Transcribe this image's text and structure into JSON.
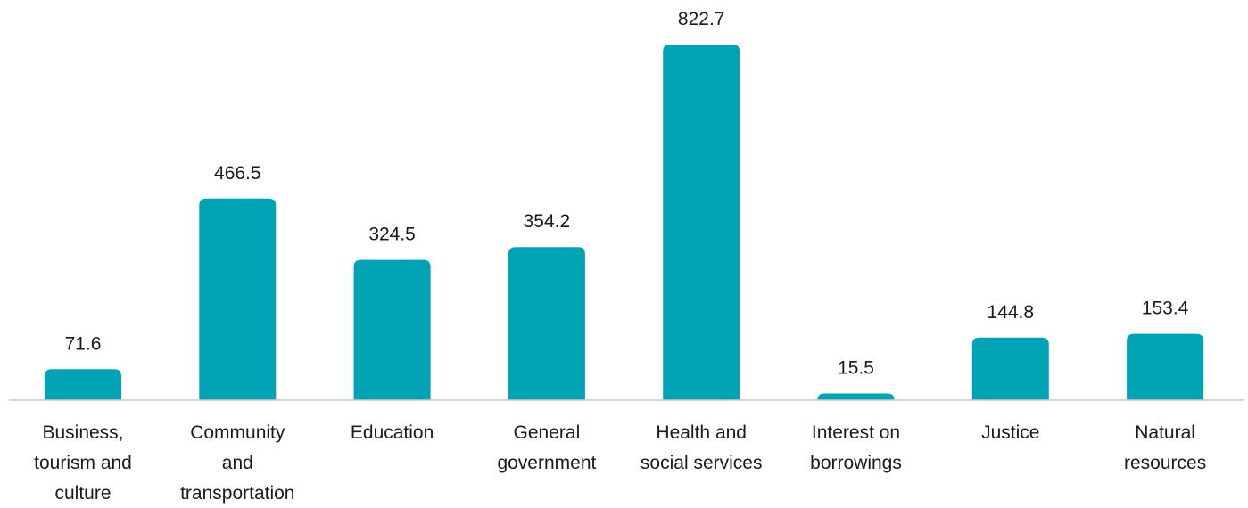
{
  "chart_data": {
    "type": "bar",
    "title": "",
    "xlabel": "",
    "ylabel": "",
    "categories": [
      "Business, tourism and culture",
      "Community and transportation",
      "Education",
      "General government",
      "Health and social services",
      "Interest on borrowings",
      "Justice",
      "Natural resources"
    ],
    "category_lines": [
      [
        "Business,",
        "tourism and",
        "culture"
      ],
      [
        "Community",
        "and",
        "transportation"
      ],
      [
        "Education"
      ],
      [
        "General",
        "government"
      ],
      [
        "Health and",
        "social services"
      ],
      [
        "Interest on",
        "borrowings"
      ],
      [
        "Justice"
      ],
      [
        "Natural",
        "resources"
      ]
    ],
    "values": [
      71.6,
      466.5,
      324.5,
      354.2,
      822.7,
      15.5,
      144.8,
      153.4
    ],
    "value_labels": [
      "71.6",
      "466.5",
      "324.5",
      "354.2",
      "822.7",
      "15.5",
      "144.8",
      "153.4"
    ],
    "ylim": [
      0,
      822.7
    ],
    "grid": false,
    "legend": "none",
    "colors": {
      "bar": "#00A3B4",
      "axis": "#c8c8c8",
      "text": "#1a1a1a"
    }
  }
}
